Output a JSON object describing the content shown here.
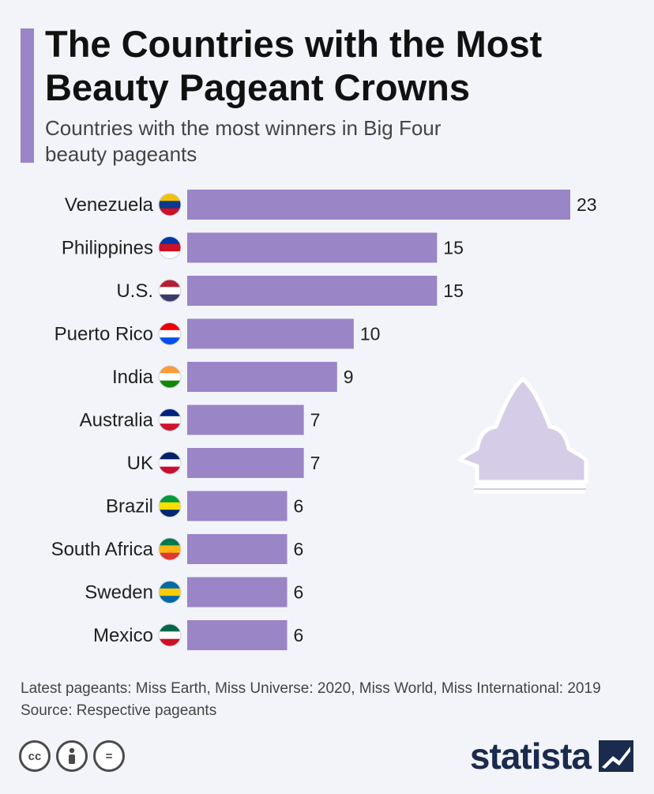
{
  "header": {
    "title": "The Countries with the Most Beauty Pageant Crowns",
    "subtitle": "Countries with the most winners in Big Four beauty pageants"
  },
  "chart_data": {
    "type": "bar",
    "orientation": "horizontal",
    "title": "The Countries with the Most Beauty Pageant Crowns",
    "subtitle": "Countries with the most winners in Big Four beauty pageants",
    "categories": [
      "Venezuela",
      "Philippines",
      "U.S.",
      "Puerto Rico",
      "India",
      "Australia",
      "UK",
      "Brazil",
      "South Africa",
      "Sweden",
      "Mexico"
    ],
    "values": [
      23,
      15,
      15,
      10,
      9,
      7,
      7,
      6,
      6,
      6,
      6
    ],
    "xlim": [
      0,
      23
    ],
    "bar_color": "#9a86c6",
    "xlabel": "",
    "ylabel": "",
    "grid": false
  },
  "flags": [
    {
      "country": "Venezuela",
      "colors": [
        "#f4c200",
        "#0a3a8c",
        "#cf1126"
      ]
    },
    {
      "country": "Philippines",
      "colors": [
        "#0038a8",
        "#ce1126",
        "#ffffff"
      ]
    },
    {
      "country": "U.S.",
      "colors": [
        "#b22234",
        "#ffffff",
        "#3c3b6e"
      ]
    },
    {
      "country": "Puerto Rico",
      "colors": [
        "#ed0000",
        "#ffffff",
        "#0050f0"
      ]
    },
    {
      "country": "India",
      "colors": [
        "#ff9933",
        "#ffffff",
        "#138808"
      ]
    },
    {
      "country": "Australia",
      "colors": [
        "#00247d",
        "#ffffff",
        "#cf142b"
      ]
    },
    {
      "country": "UK",
      "colors": [
        "#012169",
        "#ffffff",
        "#c8102e"
      ]
    },
    {
      "country": "Brazil",
      "colors": [
        "#009c3b",
        "#ffdf00",
        "#002776"
      ]
    },
    {
      "country": "South Africa",
      "colors": [
        "#007a4d",
        "#ffb612",
        "#de3831"
      ]
    },
    {
      "country": "Sweden",
      "colors": [
        "#006aa7",
        "#fecc00",
        "#006aa7"
      ]
    },
    {
      "country": "Mexico",
      "colors": [
        "#006847",
        "#ffffff",
        "#ce1126"
      ]
    }
  ],
  "footer": {
    "note": "Latest pageants: Miss Earth, Miss Universe: 2020, Miss World, Miss International: 2019",
    "source": "Source: Respective pageants",
    "license_icons": [
      "cc-icon",
      "attribution-icon",
      "no-derivatives-icon"
    ],
    "cc_text": "cc",
    "nd_text": "=",
    "brand": "statista"
  },
  "colors": {
    "accent": "#9a86c6",
    "background": "#f2f4f9",
    "crown": "#d5cce8",
    "brand": "#1a2b4d"
  }
}
